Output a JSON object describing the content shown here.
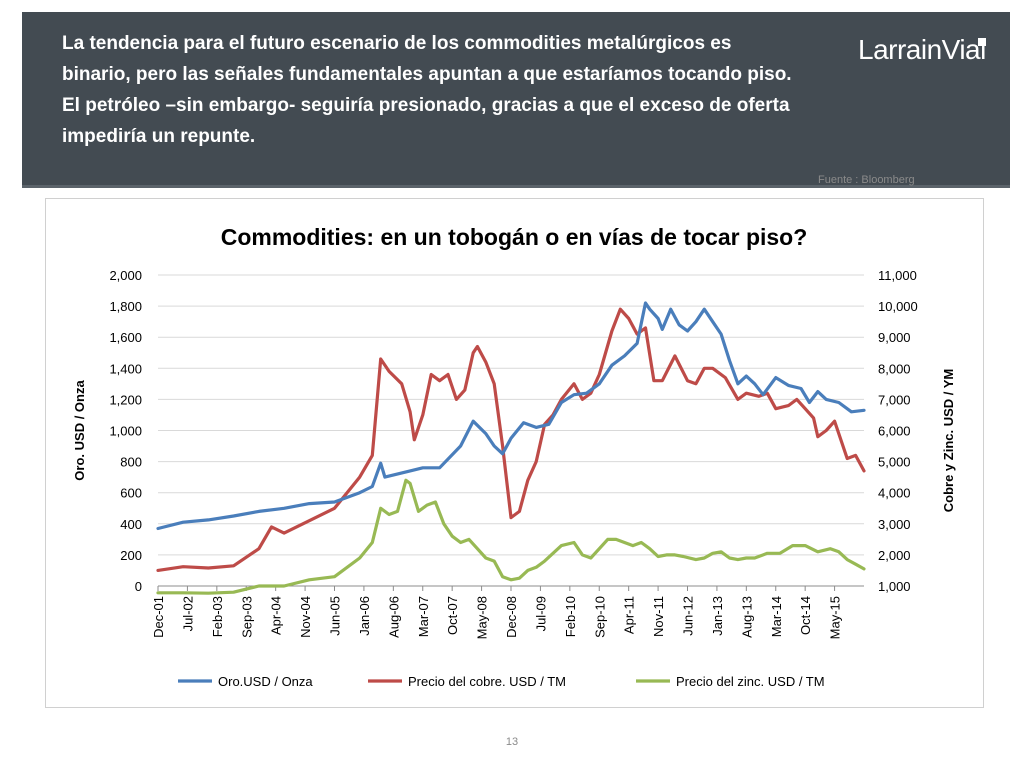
{
  "headline": "La tendencia para el futuro escenario de los commodities metalúrgicos es binario, pero las señales fundamentales apuntan a que estaríamos tocando piso. El petróleo –sin embargo- seguiría presionado, gracias a que el exceso de oferta impediría un repunte.",
  "brand": "LarrainVial",
  "source_note": "Fuente : Bloomberg",
  "page_number": "13",
  "colors": {
    "header_bg": "#434b52",
    "gold": "#4a7ebb",
    "copper": "#be4b48",
    "zinc": "#98b954"
  },
  "chart_data": {
    "type": "line",
    "title": "Commodities: en un tobogán o en vías de tocar piso?",
    "ylabel": "Oro. USD / Onza",
    "y2label": "Cobre y Zinc. USD / YM",
    "ylim": [
      0,
      2000
    ],
    "y2lim": [
      1000,
      11000
    ],
    "yticks": [
      "0",
      "200",
      "400",
      "600",
      "800",
      "1,000",
      "1,200",
      "1,400",
      "1,600",
      "1,800",
      "2,000"
    ],
    "y2ticks": [
      "1,000",
      "2,000",
      "3,000",
      "4,000",
      "5,000",
      "6,000",
      "7,000",
      "8,000",
      "9,000",
      "10,000",
      "11,000"
    ],
    "xticks": [
      "Dec-01",
      "Jul-02",
      "Feb-03",
      "Sep-03",
      "Apr-04",
      "Nov-04",
      "Jun-05",
      "Jan-06",
      "Aug-06",
      "Mar-07",
      "Oct-07",
      "May-08",
      "Dec-08",
      "Jul-09",
      "Feb-10",
      "Sep-10",
      "Apr-11",
      "Nov-11",
      "Jun-12",
      "Jan-13",
      "Aug-13",
      "Mar-14",
      "Oct-14",
      "May-15"
    ],
    "x_start": "Dec-01",
    "x_end": "Dec-15",
    "legend_position": "bottom",
    "grid": "horizontal",
    "series": [
      {
        "name": "Oro.USD / Onza",
        "axis": "left",
        "color": "#4a7ebb",
        "points": [
          [
            "Dec-01",
            370
          ],
          [
            "Jun-02",
            410
          ],
          [
            "Dec-02",
            425
          ],
          [
            "Jun-03",
            450
          ],
          [
            "Dec-03",
            480
          ],
          [
            "Jun-04",
            500
          ],
          [
            "Dec-04",
            530
          ],
          [
            "Jun-05",
            540
          ],
          [
            "Dec-05",
            600
          ],
          [
            "Mar-06",
            640
          ],
          [
            "May-06",
            790
          ],
          [
            "Jun-06",
            700
          ],
          [
            "Dec-06",
            740
          ],
          [
            "Mar-07",
            760
          ],
          [
            "Jul-07",
            760
          ],
          [
            "Dec-07",
            900
          ],
          [
            "Mar-08",
            1060
          ],
          [
            "Jun-08",
            980
          ],
          [
            "Aug-08",
            900
          ],
          [
            "Oct-08",
            850
          ],
          [
            "Dec-08",
            950
          ],
          [
            "Mar-09",
            1050
          ],
          [
            "Jun-09",
            1020
          ],
          [
            "Sep-09",
            1040
          ],
          [
            "Dec-09",
            1180
          ],
          [
            "Mar-10",
            1230
          ],
          [
            "Jun-10",
            1240
          ],
          [
            "Sep-10",
            1300
          ],
          [
            "Dec-10",
            1420
          ],
          [
            "Mar-11",
            1480
          ],
          [
            "Jun-11",
            1560
          ],
          [
            "Aug-11",
            1820
          ],
          [
            "Sep-11",
            1780
          ],
          [
            "Nov-11",
            1720
          ],
          [
            "Dec-11",
            1650
          ],
          [
            "Feb-12",
            1780
          ],
          [
            "Apr-12",
            1680
          ],
          [
            "Jun-12",
            1640
          ],
          [
            "Aug-12",
            1700
          ],
          [
            "Oct-12",
            1780
          ],
          [
            "Dec-12",
            1700
          ],
          [
            "Feb-13",
            1620
          ],
          [
            "Apr-13",
            1450
          ],
          [
            "Jun-13",
            1300
          ],
          [
            "Aug-13",
            1350
          ],
          [
            "Oct-13",
            1300
          ],
          [
            "Dec-13",
            1230
          ],
          [
            "Mar-14",
            1340
          ],
          [
            "Jun-14",
            1290
          ],
          [
            "Sep-14",
            1270
          ],
          [
            "Nov-14",
            1180
          ],
          [
            "Jan-15",
            1250
          ],
          [
            "Mar-15",
            1200
          ],
          [
            "Jun-15",
            1180
          ],
          [
            "Sep-15",
            1120
          ],
          [
            "Dec-15",
            1130
          ]
        ]
      },
      {
        "name": "Precio del cobre. USD / TM",
        "axis": "right",
        "color": "#be4b48",
        "points": [
          [
            "Dec-01",
            1500
          ],
          [
            "Jun-02",
            1620
          ],
          [
            "Dec-02",
            1580
          ],
          [
            "Jun-03",
            1650
          ],
          [
            "Dec-03",
            2200
          ],
          [
            "Mar-04",
            2900
          ],
          [
            "Jun-04",
            2700
          ],
          [
            "Dec-04",
            3100
          ],
          [
            "Jun-05",
            3500
          ],
          [
            "Dec-05",
            4500
          ],
          [
            "Mar-06",
            5200
          ],
          [
            "May-06",
            8300
          ],
          [
            "Jul-06",
            7900
          ],
          [
            "Oct-06",
            7500
          ],
          [
            "Dec-06",
            6600
          ],
          [
            "Jan-07",
            5700
          ],
          [
            "Mar-07",
            6500
          ],
          [
            "May-07",
            7800
          ],
          [
            "Jul-07",
            7600
          ],
          [
            "Sep-07",
            7800
          ],
          [
            "Nov-07",
            7000
          ],
          [
            "Jan-08",
            7300
          ],
          [
            "Mar-08",
            8500
          ],
          [
            "Apr-08",
            8700
          ],
          [
            "Jun-08",
            8200
          ],
          [
            "Aug-08",
            7500
          ],
          [
            "Oct-08",
            5500
          ],
          [
            "Dec-08",
            3200
          ],
          [
            "Feb-09",
            3400
          ],
          [
            "Apr-09",
            4400
          ],
          [
            "Jun-09",
            5000
          ],
          [
            "Aug-09",
            6200
          ],
          [
            "Oct-09",
            6500
          ],
          [
            "Dec-09",
            7000
          ],
          [
            "Mar-10",
            7500
          ],
          [
            "May-10",
            7000
          ],
          [
            "Jul-10",
            7200
          ],
          [
            "Sep-10",
            7800
          ],
          [
            "Dec-10",
            9200
          ],
          [
            "Feb-11",
            9900
          ],
          [
            "Apr-11",
            9600
          ],
          [
            "Jun-11",
            9100
          ],
          [
            "Aug-11",
            9300
          ],
          [
            "Oct-11",
            7600
          ],
          [
            "Dec-11",
            7600
          ],
          [
            "Mar-12",
            8400
          ],
          [
            "Jun-12",
            7600
          ],
          [
            "Aug-12",
            7500
          ],
          [
            "Oct-12",
            8000
          ],
          [
            "Dec-12",
            8000
          ],
          [
            "Mar-13",
            7700
          ],
          [
            "Jun-13",
            7000
          ],
          [
            "Aug-13",
            7200
          ],
          [
            "Nov-13",
            7100
          ],
          [
            "Jan-14",
            7200
          ],
          [
            "Mar-14",
            6700
          ],
          [
            "Jun-14",
            6800
          ],
          [
            "Aug-14",
            7000
          ],
          [
            "Oct-14",
            6700
          ],
          [
            "Dec-14",
            6400
          ],
          [
            "Jan-15",
            5800
          ],
          [
            "Mar-15",
            6000
          ],
          [
            "May-15",
            6300
          ],
          [
            "Aug-15",
            5100
          ],
          [
            "Oct-15",
            5200
          ],
          [
            "Dec-15",
            4700
          ]
        ]
      },
      {
        "name": "Precio del zinc. USD / TM",
        "axis": "right",
        "color": "#98b954",
        "points": [
          [
            "Dec-01",
            780
          ],
          [
            "Jun-02",
            780
          ],
          [
            "Dec-02",
            770
          ],
          [
            "Jun-03",
            800
          ],
          [
            "Dec-03",
            1000
          ],
          [
            "Jun-04",
            1000
          ],
          [
            "Dec-04",
            1200
          ],
          [
            "Jun-05",
            1300
          ],
          [
            "Dec-05",
            1900
          ],
          [
            "Mar-06",
            2400
          ],
          [
            "May-06",
            3500
          ],
          [
            "Jul-06",
            3300
          ],
          [
            "Sep-06",
            3400
          ],
          [
            "Nov-06",
            4400
          ],
          [
            "Dec-06",
            4300
          ],
          [
            "Feb-07",
            3400
          ],
          [
            "Apr-07",
            3600
          ],
          [
            "Jun-07",
            3700
          ],
          [
            "Aug-07",
            3000
          ],
          [
            "Oct-07",
            2600
          ],
          [
            "Dec-07",
            2400
          ],
          [
            "Feb-08",
            2500
          ],
          [
            "Apr-08",
            2200
          ],
          [
            "Jun-08",
            1900
          ],
          [
            "Aug-08",
            1800
          ],
          [
            "Oct-08",
            1300
          ],
          [
            "Dec-08",
            1200
          ],
          [
            "Feb-09",
            1250
          ],
          [
            "Apr-09",
            1500
          ],
          [
            "Jun-09",
            1600
          ],
          [
            "Aug-09",
            1800
          ],
          [
            "Dec-09",
            2300
          ],
          [
            "Mar-10",
            2400
          ],
          [
            "May-10",
            2000
          ],
          [
            "Jul-10",
            1900
          ],
          [
            "Sep-10",
            2200
          ],
          [
            "Nov-10",
            2500
          ],
          [
            "Jan-11",
            2500
          ],
          [
            "Mar-11",
            2400
          ],
          [
            "May-11",
            2300
          ],
          [
            "Jul-11",
            2400
          ],
          [
            "Sep-11",
            2200
          ],
          [
            "Nov-11",
            1950
          ],
          [
            "Jan-12",
            2000
          ],
          [
            "Mar-12",
            2000
          ],
          [
            "May-12",
            1950
          ],
          [
            "Aug-12",
            1850
          ],
          [
            "Oct-12",
            1900
          ],
          [
            "Dec-12",
            2050
          ],
          [
            "Feb-13",
            2100
          ],
          [
            "Apr-13",
            1900
          ],
          [
            "Jun-13",
            1850
          ],
          [
            "Aug-13",
            1900
          ],
          [
            "Oct-13",
            1900
          ],
          [
            "Jan-14",
            2050
          ],
          [
            "Apr-14",
            2050
          ],
          [
            "Jul-14",
            2300
          ],
          [
            "Oct-14",
            2300
          ],
          [
            "Jan-15",
            2100
          ],
          [
            "Apr-15",
            2200
          ],
          [
            "Jun-15",
            2100
          ],
          [
            "Aug-15",
            1850
          ],
          [
            "Oct-15",
            1700
          ],
          [
            "Dec-15",
            1550
          ]
        ]
      }
    ]
  }
}
